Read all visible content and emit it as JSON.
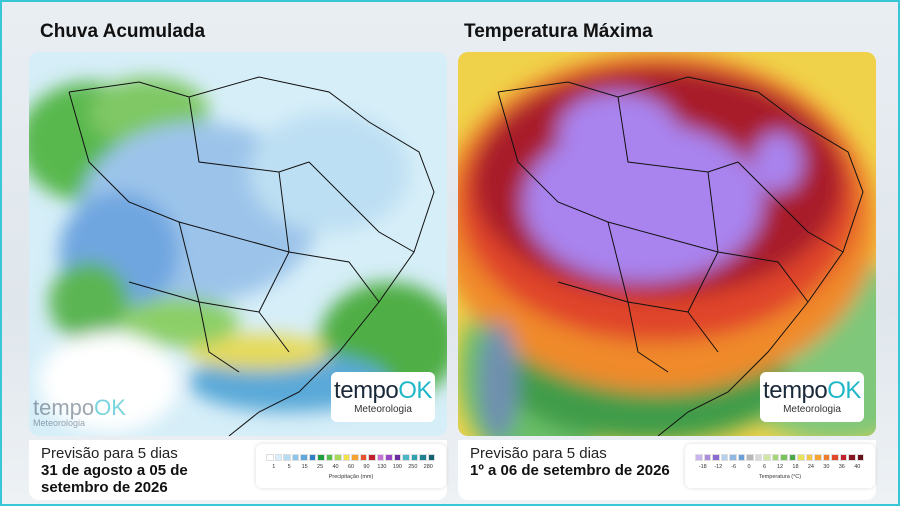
{
  "panels": [
    {
      "title": "Chuva Acumulada",
      "subtitle": "Previsão para 5 dias",
      "period": "31 de agosto a 05 de setembro de 2026",
      "legend": {
        "label": "Precipitação (mm)",
        "ticks": [
          1,
          5,
          15,
          25,
          40,
          60,
          90,
          130,
          190,
          250,
          280
        ]
      }
    },
    {
      "title": "Temperatura Máxima",
      "subtitle": "Previsão para 5 dias",
      "period": "1º a 06 de setembro de 2026",
      "legend": {
        "label": "Temperatura (°C)",
        "ticks": [
          -18,
          -12,
          -6,
          0,
          6,
          12,
          18,
          24,
          30,
          36,
          40
        ]
      }
    }
  ],
  "logo": {
    "brand": "tempo",
    "brand_accent": "OK",
    "tagline": "Meteorologia"
  }
}
